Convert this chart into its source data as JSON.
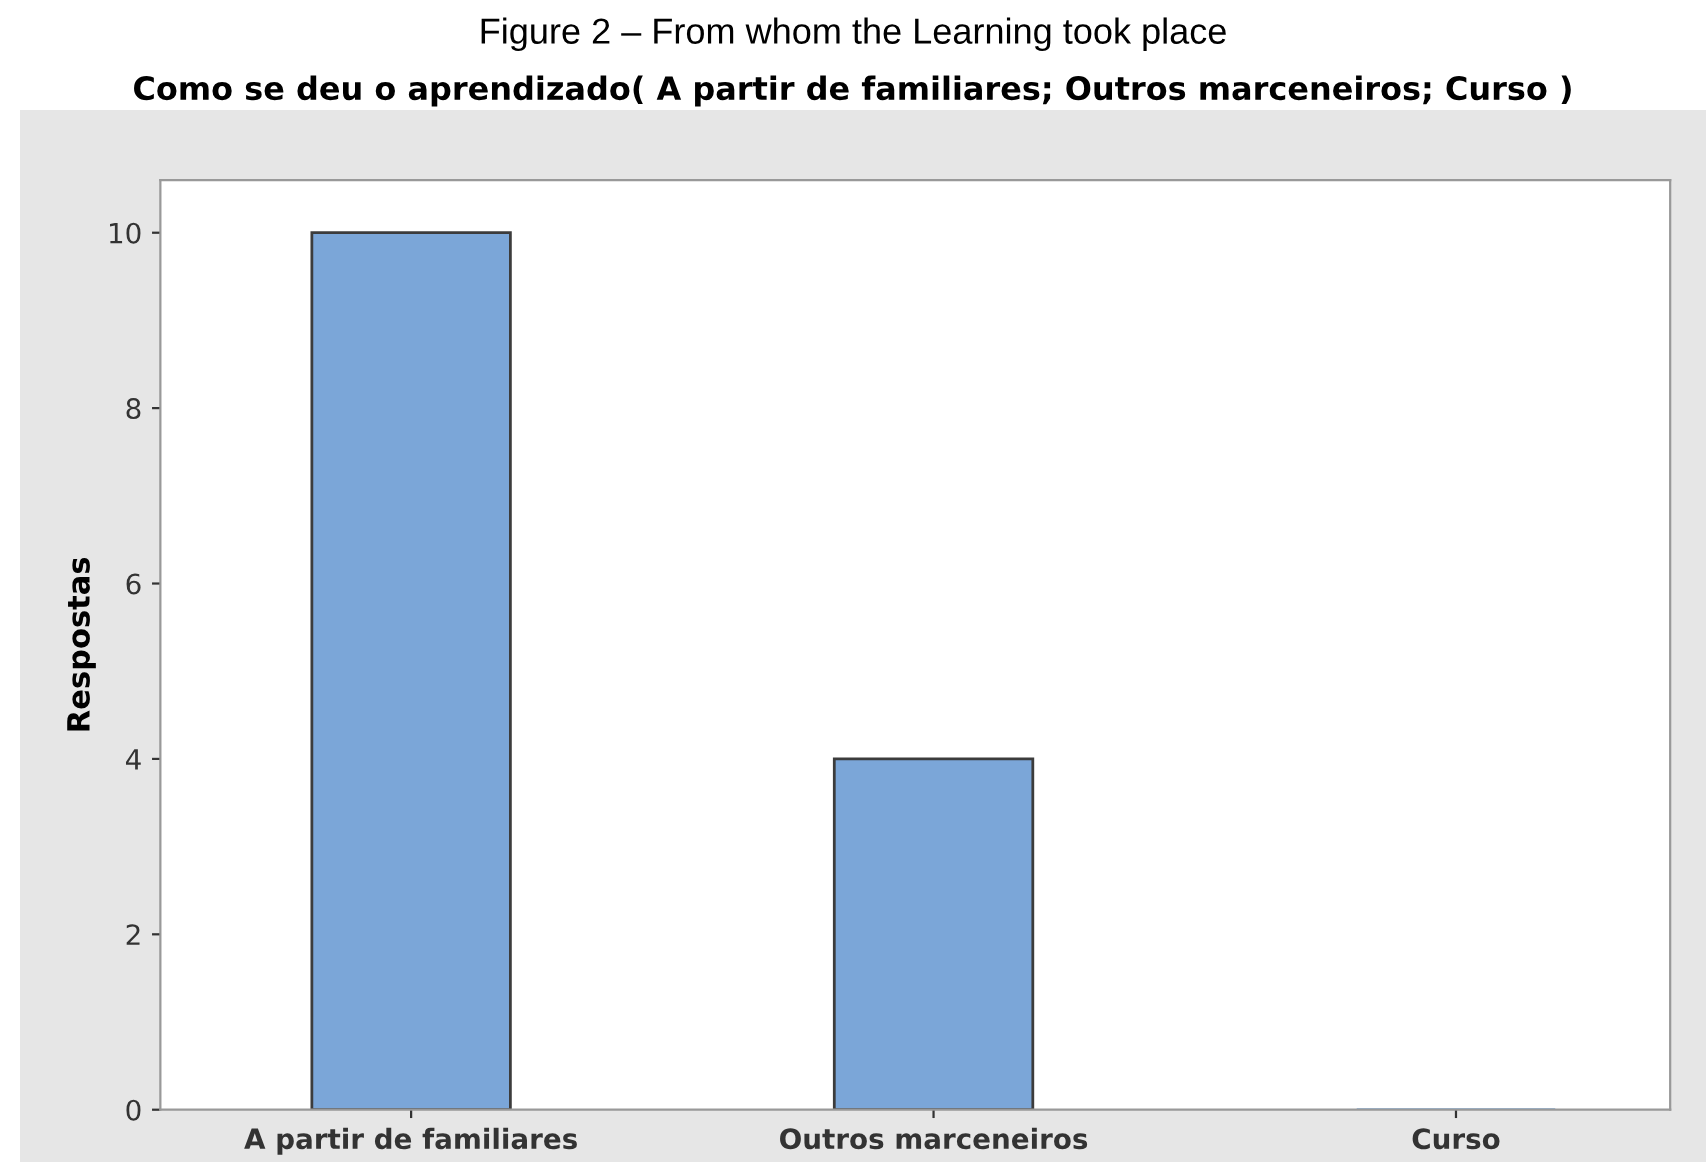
{
  "chart_data": {
    "type": "bar",
    "title": "Figure 2 – From whom the Learning took place",
    "subtitle": "Como se deu o aprendizado( A partir de familiares; Outros marceneiros; Curso )",
    "ylabel": "Respostas",
    "categories": [
      "A partir de familiares",
      "Outros marceneiros",
      "Curso"
    ],
    "values": [
      10,
      4,
      0
    ],
    "color": "#7ba6d8",
    "ylim": [
      0,
      10.6
    ],
    "yticks": [
      0,
      2,
      4,
      6,
      8,
      10
    ],
    "grid": false,
    "legend": false
  }
}
